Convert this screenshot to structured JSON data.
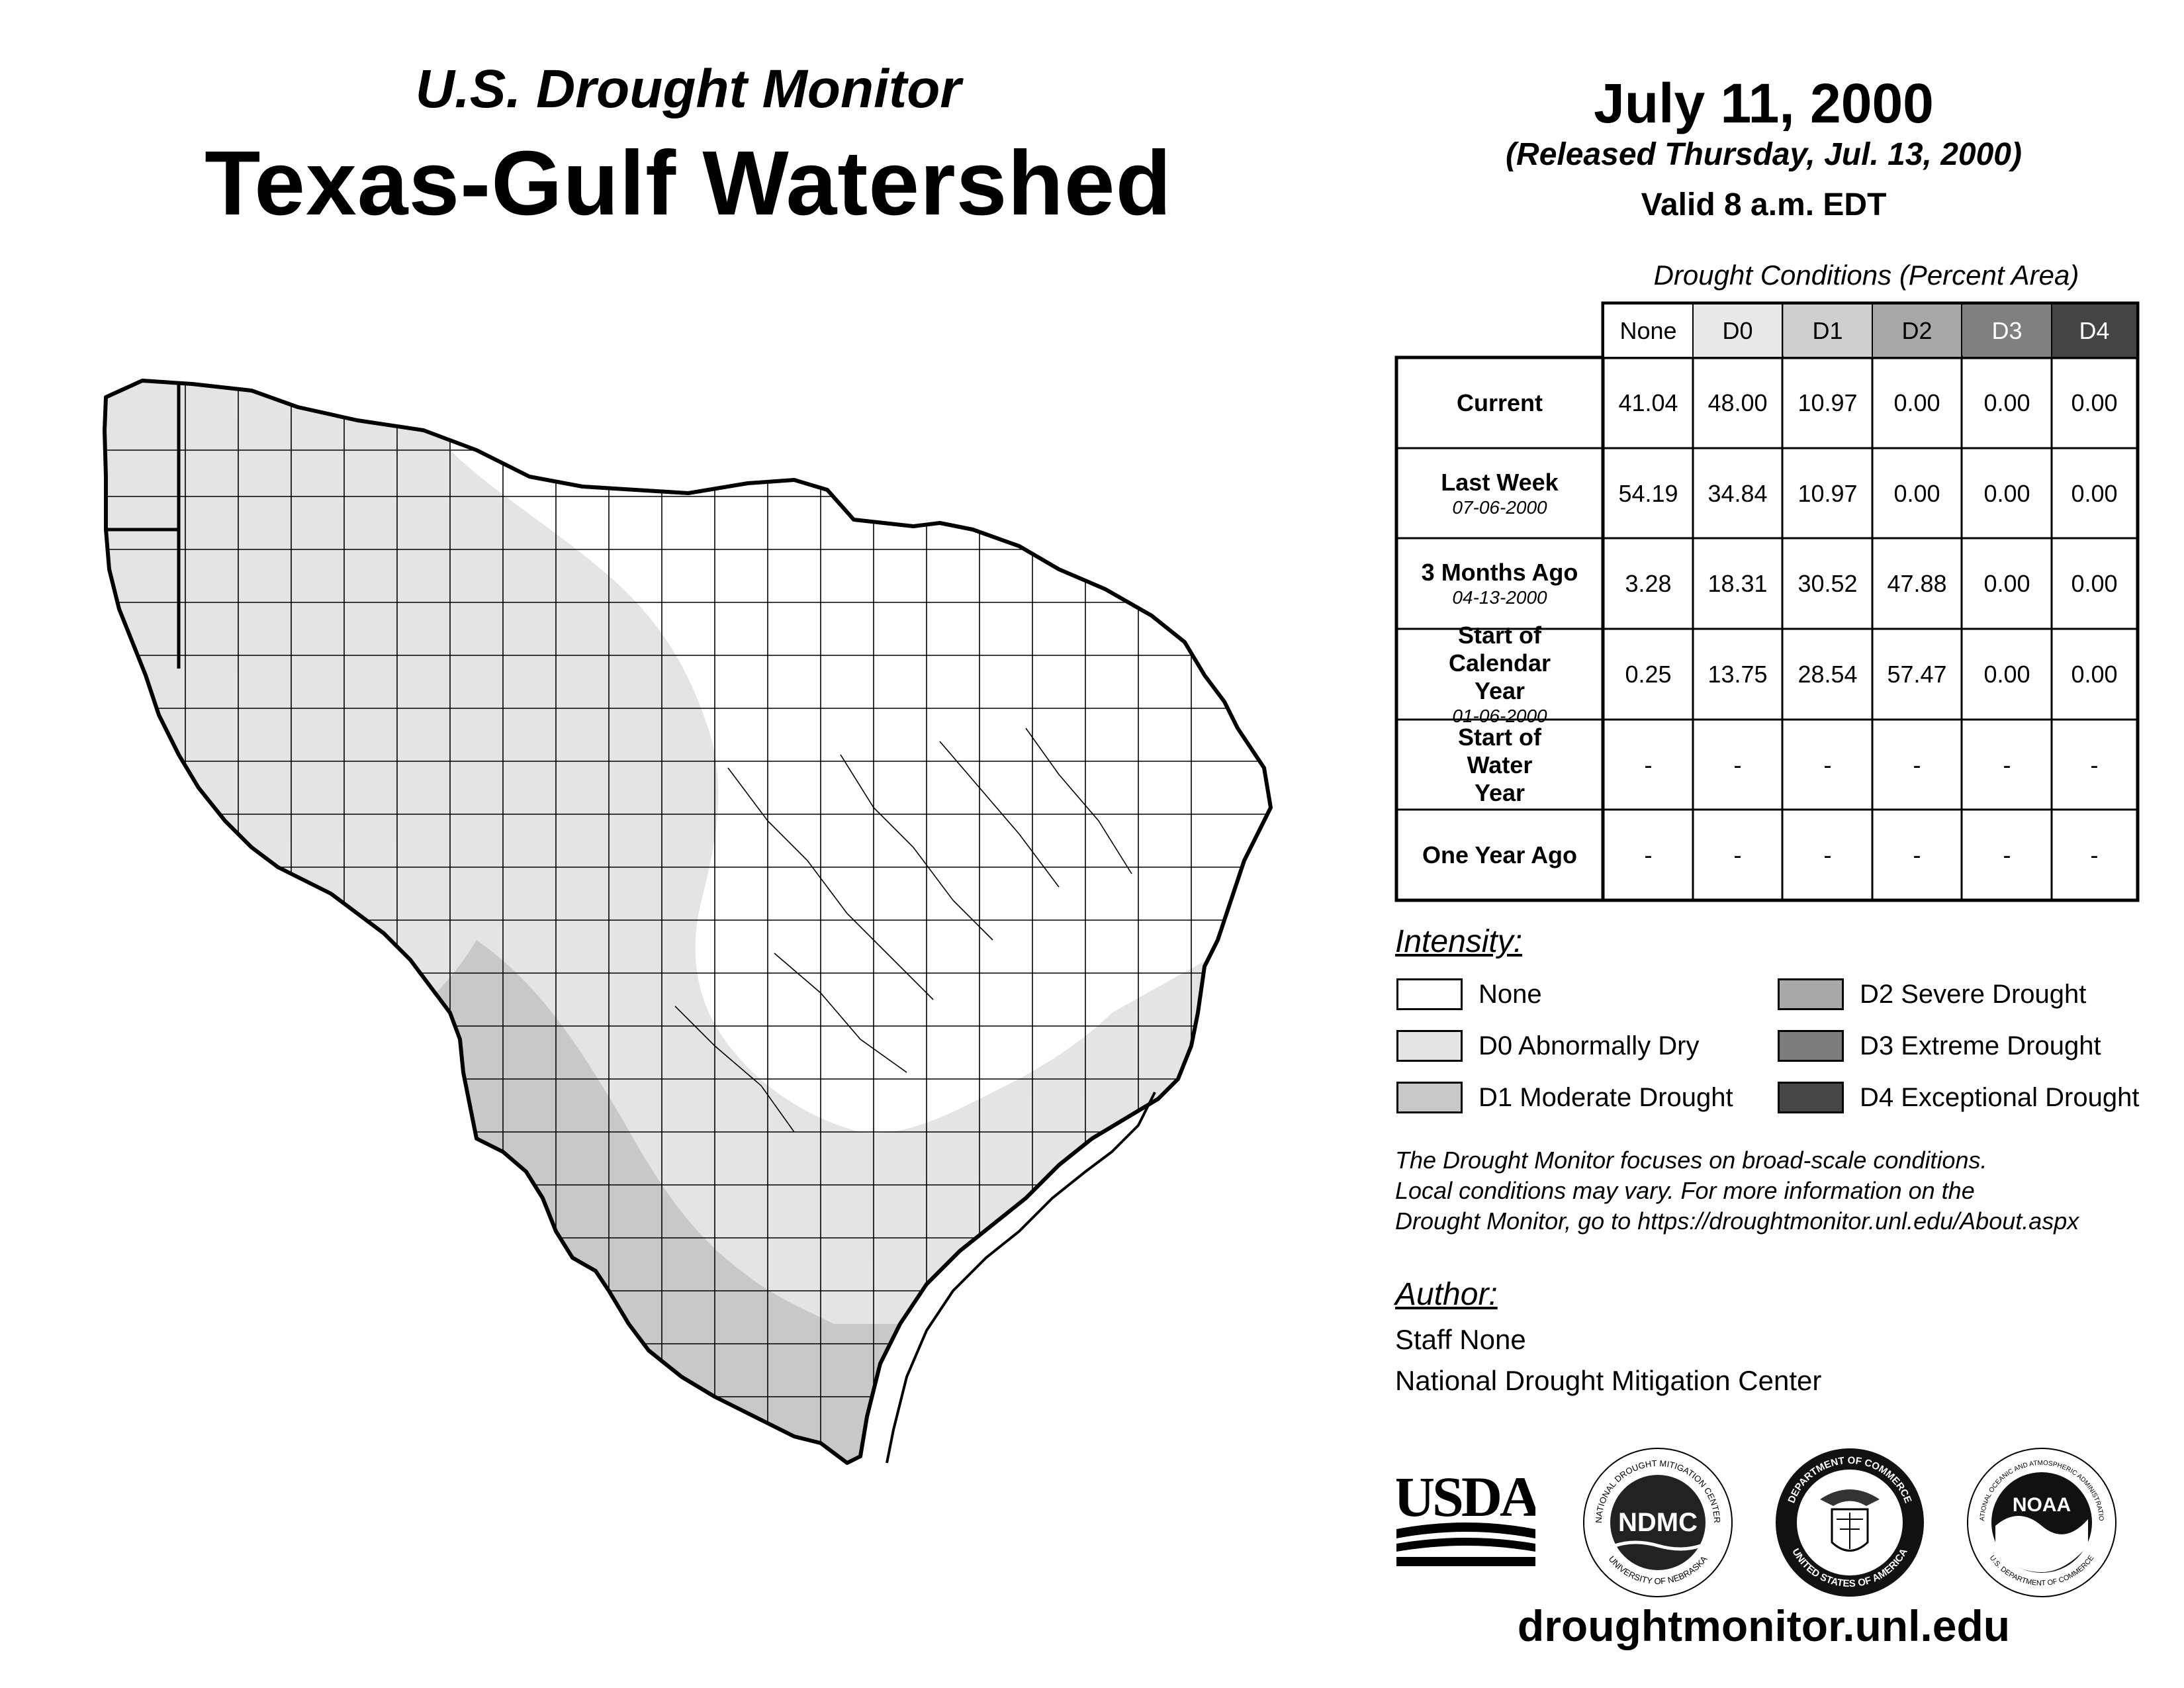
{
  "header": {
    "subtitle": "U.S. Drought Monitor",
    "title": "Texas-Gulf Watershed"
  },
  "date_block": {
    "date": "July 11, 2000",
    "released": "(Released Thursday, Jul. 13, 2000)",
    "valid": "Valid 8 a.m. EDT"
  },
  "table": {
    "caption": "Drought Conditions (Percent Area)",
    "columns": [
      "None",
      "D0",
      "D1",
      "D2",
      "D3",
      "D4"
    ],
    "column_colors": [
      "#ffffff",
      "#e8e8e8",
      "#cfcfcf",
      "#a8a8a8",
      "#808080",
      "#444444"
    ],
    "rows": [
      {
        "label": "Current",
        "sublabel": "",
        "values": [
          "41.04",
          "48.00",
          "10.97",
          "0.00",
          "0.00",
          "0.00"
        ]
      },
      {
        "label": "Last Week",
        "sublabel": "07-06-2000",
        "values": [
          "54.19",
          "34.84",
          "10.97",
          "0.00",
          "0.00",
          "0.00"
        ]
      },
      {
        "label": "3 Months Ago",
        "sublabel": "04-13-2000",
        "values": [
          "3.28",
          "18.31",
          "30.52",
          "47.88",
          "0.00",
          "0.00"
        ]
      },
      {
        "label": "Start of Calendar Year",
        "sublabel": "01-06-2000",
        "values": [
          "0.25",
          "13.75",
          "28.54",
          "57.47",
          "0.00",
          "0.00"
        ]
      },
      {
        "label": "Start of Water Year",
        "sublabel": "",
        "values": [
          "-",
          "-",
          "-",
          "-",
          "-",
          "-"
        ]
      },
      {
        "label": "One Year Ago",
        "sublabel": "",
        "values": [
          "-",
          "-",
          "-",
          "-",
          "-",
          "-"
        ]
      }
    ]
  },
  "legend": {
    "title": "Intensity:",
    "items": [
      {
        "label": "None",
        "color": "#ffffff"
      },
      {
        "label": "D0 Abnormally Dry",
        "color": "#e4e4e4"
      },
      {
        "label": "D1 Moderate Drought",
        "color": "#c8c8c8"
      },
      {
        "label": "D2 Severe Drought",
        "color": "#a8a8a8"
      },
      {
        "label": "D3 Extreme Drought",
        "color": "#7c7c7c"
      },
      {
        "label": "D4 Exceptional Drought",
        "color": "#464646"
      }
    ]
  },
  "disclaimer": [
    "The Drought Monitor focuses on broad-scale conditions.",
    "Local conditions may vary. For more information on the",
    "Drought Monitor, go to https://droughtmonitor.unl.edu/About.aspx"
  ],
  "author": {
    "title": "Author:",
    "name": "Staff None",
    "org": "National Drought Mitigation Center"
  },
  "logos": {
    "usda": "USDA",
    "ndmc": "NDMC",
    "ndmc_ring_top": "NATIONAL DROUGHT MITIGATION CENTER",
    "ndmc_ring_bottom": "UNIVERSITY OF NEBRASKA",
    "doc_ring_top": "DEPARTMENT OF COMMERCE",
    "doc_ring_bottom": "UNITED STATES OF AMERICA",
    "noaa": "NOAA",
    "noaa_ring_top": "NATIONAL OCEANIC AND ATMOSPHERIC ADMINISTRATION",
    "noaa_ring_bottom": "U.S. DEPARTMENT OF COMMERCE"
  },
  "website": "droughtmonitor.unl.edu"
}
